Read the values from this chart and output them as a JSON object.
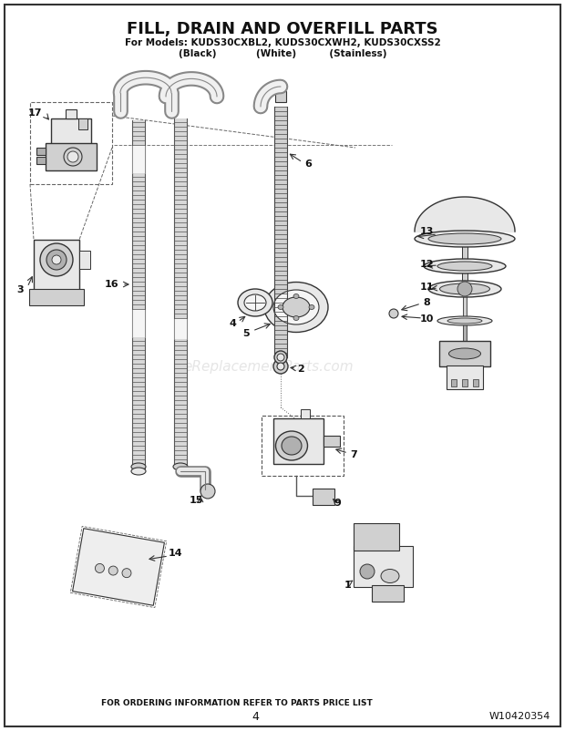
{
  "title": "FILL, DRAIN AND OVERFILL PARTS",
  "subtitle1": "For Models: KUDS30CXBL2, KUDS30CXWH2, KUDS30CXSS2",
  "subtitle2": "(Black)            (White)          (Stainless)",
  "footer1": "FOR ORDERING INFORMATION REFER TO PARTS PRICE LIST",
  "footer2": "4",
  "footer3": "W10420354",
  "watermark": "eReplacementParts.com",
  "bg_color": "#ffffff",
  "border_color": "#000000",
  "lc": "#333333",
  "fc_light": "#e8e8e8",
  "fc_mid": "#d0d0d0",
  "fc_dark": "#b0b0b0"
}
